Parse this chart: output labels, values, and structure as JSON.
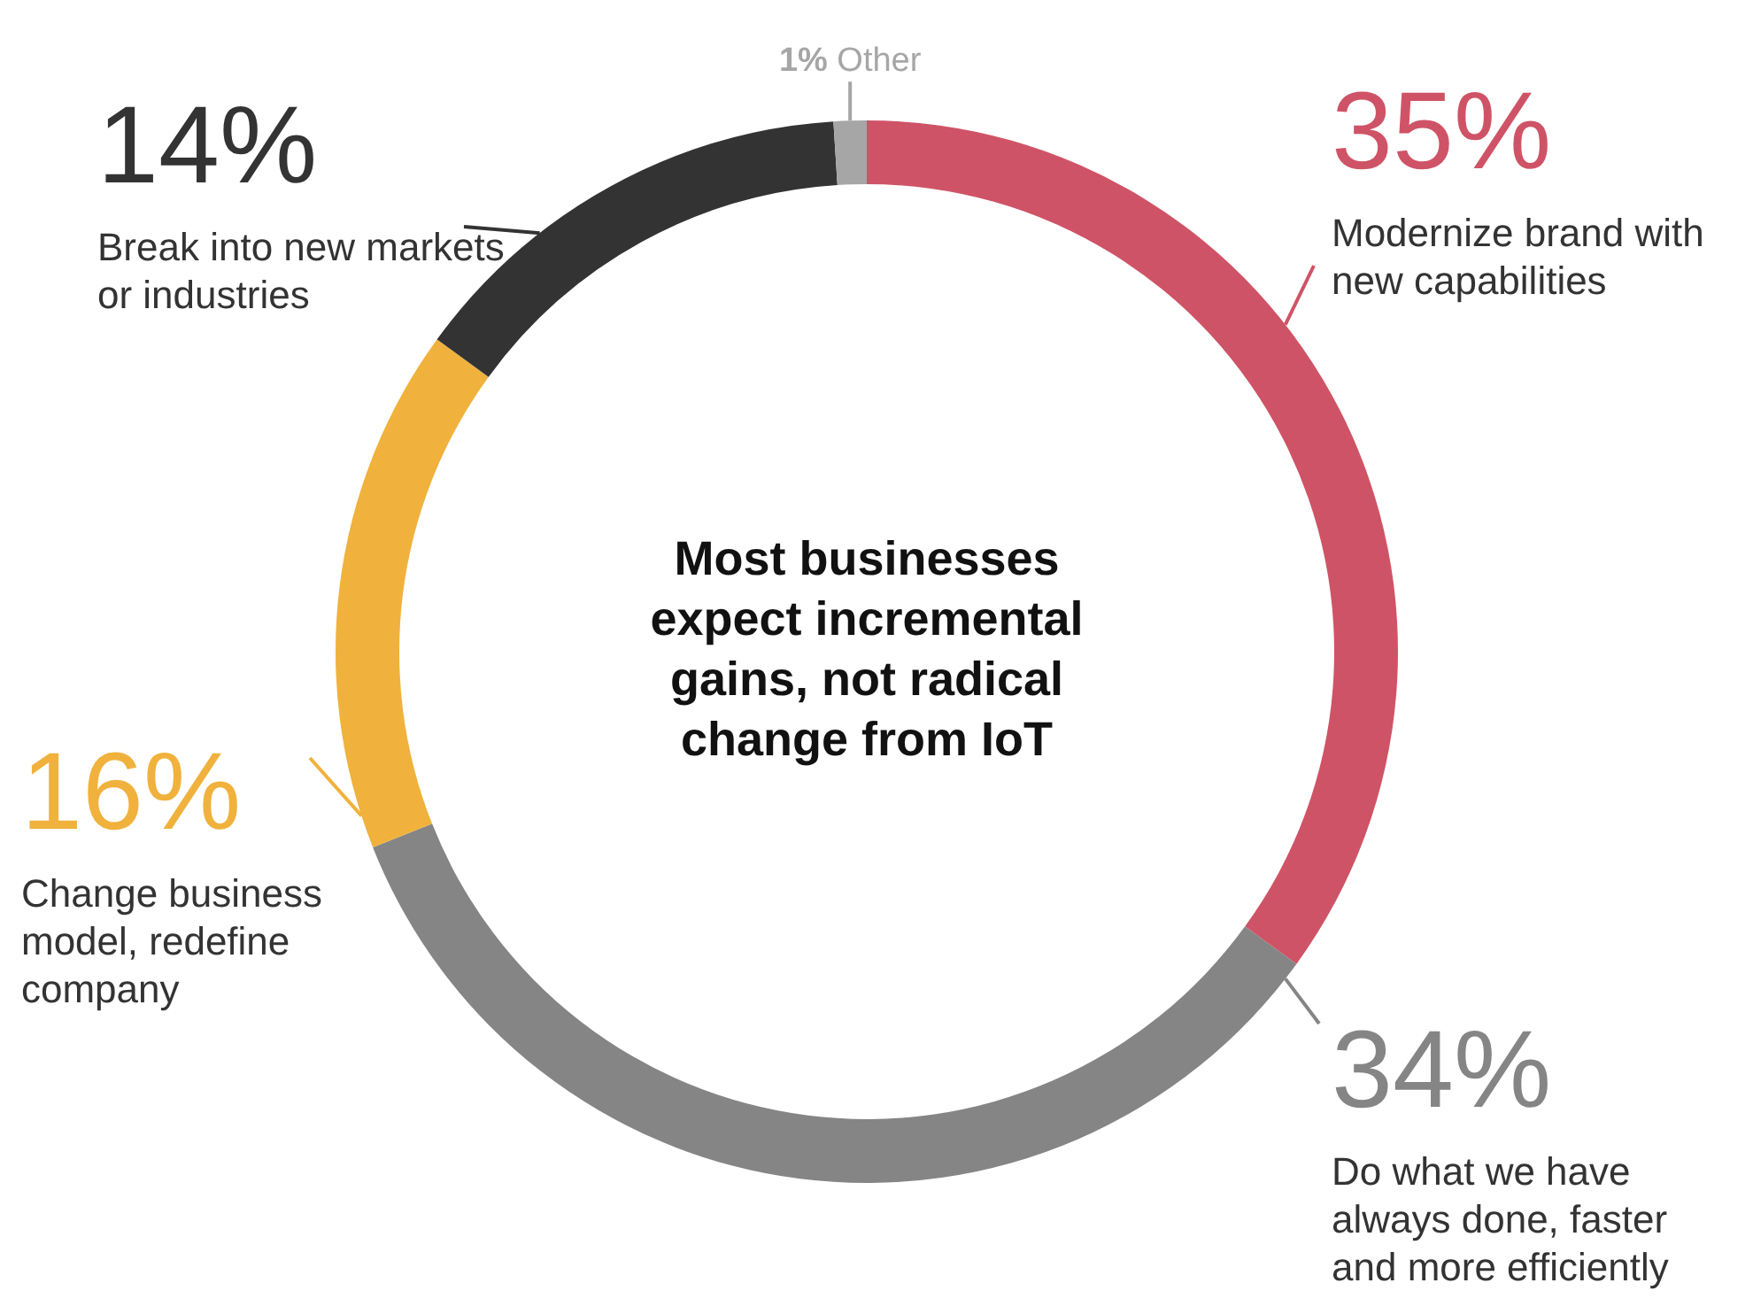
{
  "chart_data": {
    "type": "donut",
    "title": "Most businesses expect incremental gains, not radical change from IoT",
    "categories": [
      "Modernize brand with new capabilities",
      "Do what we have always done, faster and more efficiently",
      "Change business model, redefine company",
      "Break into new markets or industries",
      "Other"
    ],
    "values": [
      35,
      34,
      16,
      14,
      1
    ],
    "colors": [
      "#cf5366",
      "#858585",
      "#f0b23c",
      "#333333",
      "#a6a6a6"
    ],
    "value_labels": [
      "35%",
      "34%",
      "16%",
      "14%",
      "1%"
    ],
    "legend": false
  }
}
